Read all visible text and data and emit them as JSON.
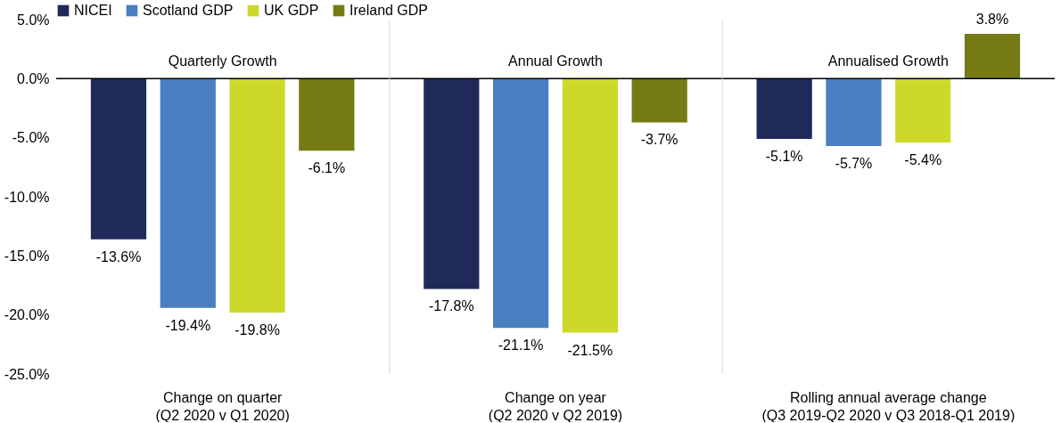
{
  "chart_data": {
    "type": "bar",
    "categories": [
      "Change on quarter (Q2 2020 v Q1 2020)",
      "Change on year (Q2 2020 v Q2 2019)",
      "Rolling annual average change (Q3 2019-Q2 2020 v Q3 2018-Q1 2019)"
    ],
    "series": [
      {
        "name": "NICEI",
        "color": "#1f2a5a",
        "values": [
          -13.6,
          -17.8,
          -5.1
        ],
        "value_labels": [
          "-13.6%",
          "-17.8%",
          "-5.1%"
        ]
      },
      {
        "name": "Scotland GDP",
        "color": "#4a7fc1",
        "values": [
          -19.4,
          -21.1,
          -5.7
        ],
        "value_labels": [
          "-19.4%",
          "-21.1%",
          "-5.7%"
        ]
      },
      {
        "name": "UK GDP",
        "color": "#cdd92a",
        "values": [
          -19.8,
          -21.5,
          -5.4
        ],
        "value_labels": [
          "-19.8%",
          "-21.5%",
          "-5.4%"
        ]
      },
      {
        "name": "Ireland GDP",
        "color": "#757a14",
        "values": [
          -6.1,
          -3.7,
          3.8
        ],
        "value_labels": [
          "-6.1%",
          "-3.7%",
          "3.8%"
        ]
      }
    ],
    "ylim": [
      -25,
      5
    ],
    "yticks": [
      {
        "value": -25,
        "label": "-25.0%"
      },
      {
        "value": -20,
        "label": "-20.0%"
      },
      {
        "value": -15,
        "label": "-15.0%"
      },
      {
        "value": -10,
        "label": "-10.0%"
      },
      {
        "value": -5,
        "label": "-5.0%"
      },
      {
        "value": 0,
        "label": "0.0%"
      },
      {
        "value": 5,
        "label": "5.0%"
      }
    ],
    "ref_lines": [
      {
        "axis": "y",
        "value": 0,
        "color": "#000000"
      }
    ],
    "annotations": [
      "Quarterly Growth",
      "Annual Growth",
      "Annualised Growth"
    ],
    "legend": "top left"
  }
}
